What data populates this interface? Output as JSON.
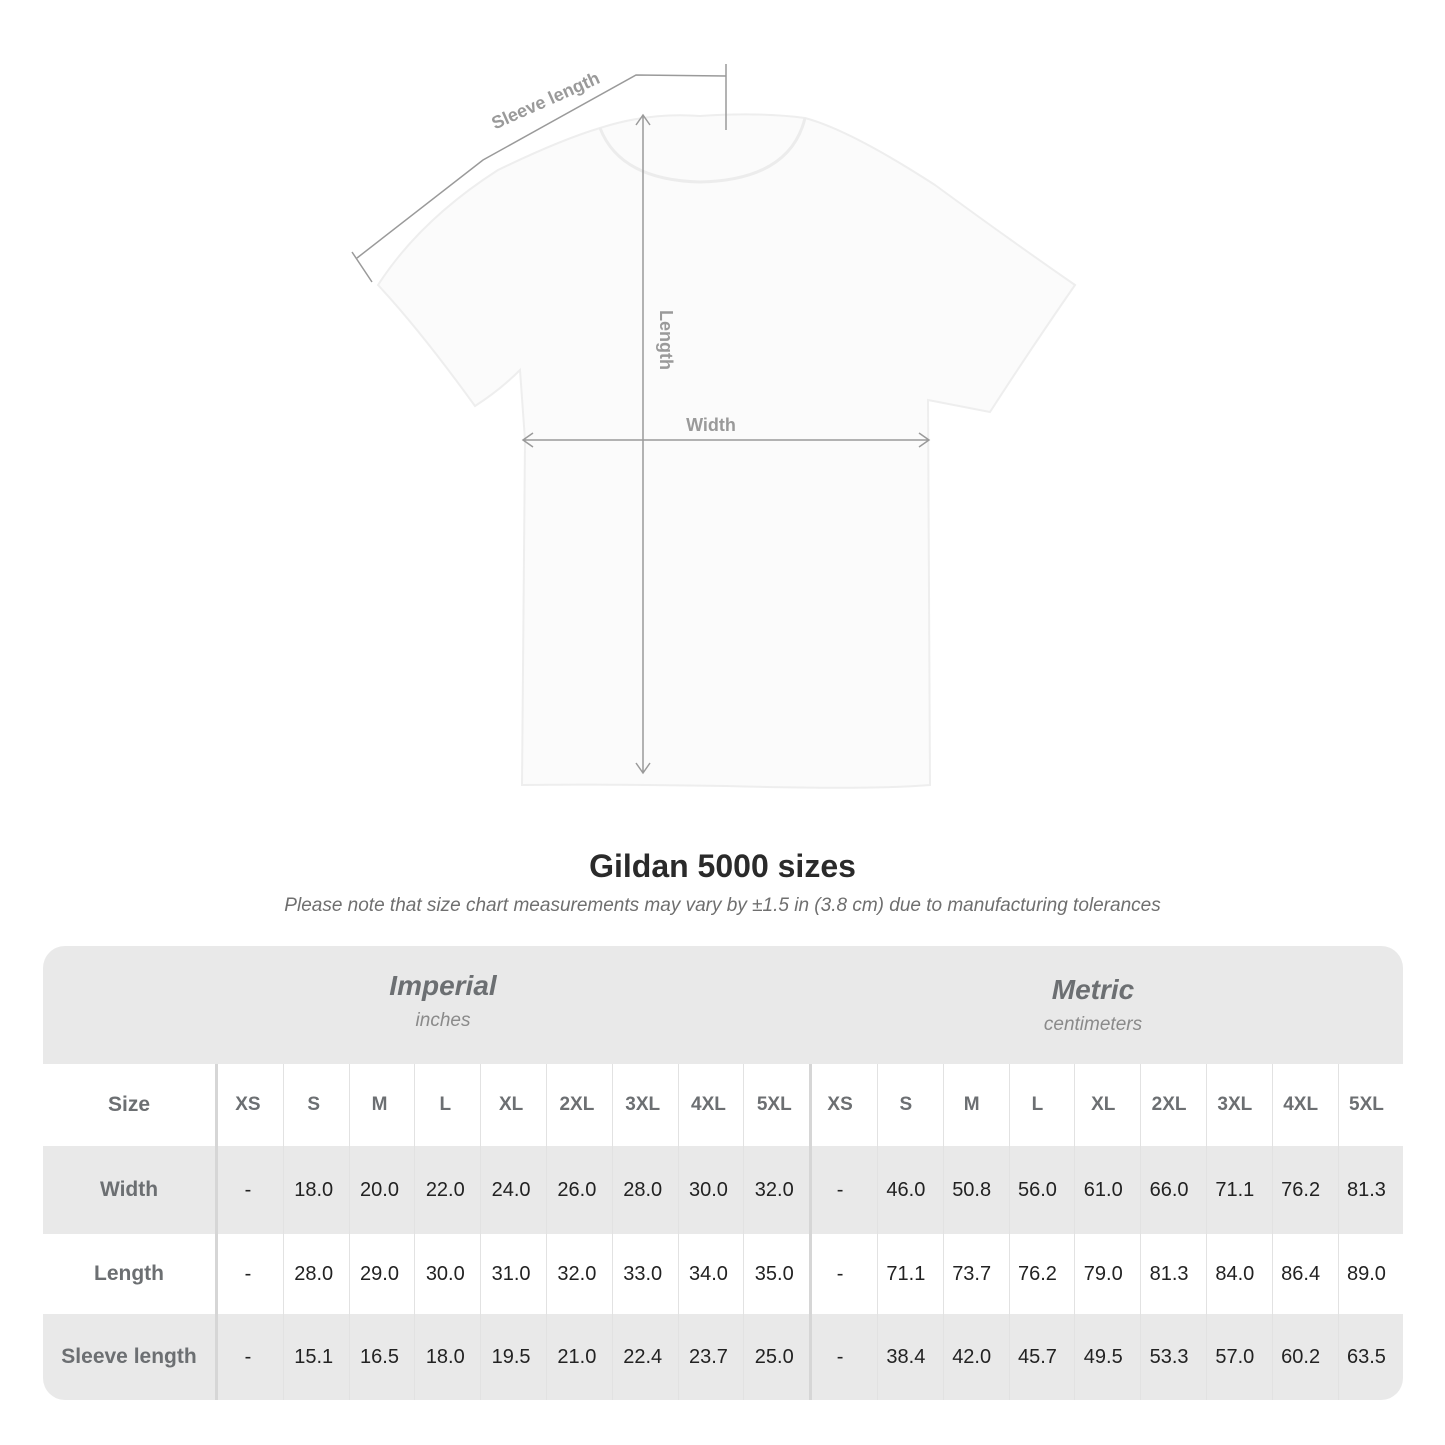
{
  "diagram": {
    "labels": {
      "sleeve": "Sleeve length",
      "length": "Length",
      "width": "Width"
    },
    "line_color": "#9a9a9a"
  },
  "title": "Gildan 5000 sizes",
  "subtitle": "Please note that size chart measurements may vary by ±1.5 in (3.8 cm) due to manufacturing tolerances",
  "table": {
    "imperial": {
      "name": "Imperial",
      "unit": "inches"
    },
    "metric": {
      "name": "Metric",
      "unit": "centimeters"
    },
    "size_label": "Size",
    "sizes": [
      "XS",
      "S",
      "M",
      "L",
      "XL",
      "2XL",
      "3XL",
      "4XL",
      "5XL"
    ],
    "rows": [
      {
        "label": "Width",
        "imperial": [
          "-",
          "18.0",
          "20.0",
          "22.0",
          "24.0",
          "26.0",
          "28.0",
          "30.0",
          "32.0"
        ],
        "metric": [
          "-",
          "46.0",
          "50.8",
          "56.0",
          "61.0",
          "66.0",
          "71.1",
          "76.2",
          "81.3"
        ]
      },
      {
        "label": "Length",
        "imperial": [
          "-",
          "28.0",
          "29.0",
          "30.0",
          "31.0",
          "32.0",
          "33.0",
          "34.0",
          "35.0"
        ],
        "metric": [
          "-",
          "71.1",
          "73.7",
          "76.2",
          "79.0",
          "81.3",
          "84.0",
          "86.4",
          "89.0"
        ]
      },
      {
        "label": "Sleeve length",
        "imperial": [
          "-",
          "15.1",
          "16.5",
          "18.0",
          "19.5",
          "21.0",
          "22.4",
          "23.7",
          "25.0"
        ],
        "metric": [
          "-",
          "38.4",
          "42.0",
          "45.7",
          "49.5",
          "53.3",
          "57.0",
          "60.2",
          "63.5"
        ]
      }
    ],
    "band_color": "#e9e9e9"
  }
}
